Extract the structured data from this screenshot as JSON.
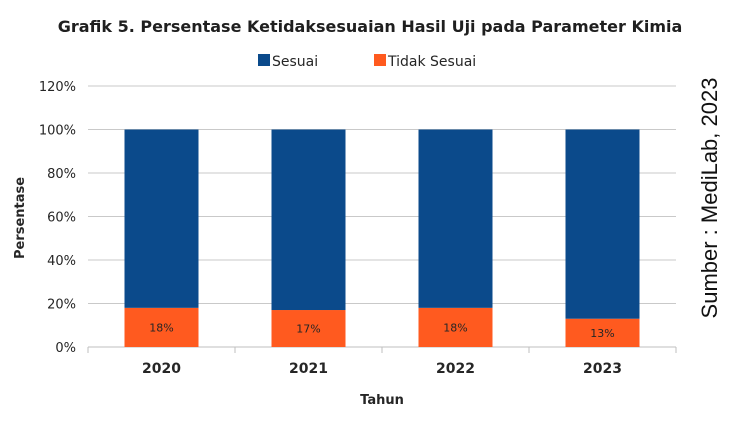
{
  "chart_data": {
    "type": "bar",
    "stacked": true,
    "title": "Grafik 5. Persentase Ketidaksesuaian Hasil Uji pada Parameter Kimia",
    "xlabel": "Tahun",
    "ylabel": "Persentase",
    "categories": [
      "2020",
      "2021",
      "2022",
      "2023"
    ],
    "series": [
      {
        "name": "Tidak Sesuai",
        "values": [
          18,
          17,
          18,
          13
        ],
        "color": "#ff5a1f",
        "labels": [
          "18%",
          "17%",
          "18%",
          "13%"
        ]
      },
      {
        "name": "Sesuai",
        "values": [
          82,
          83,
          82,
          87
        ],
        "color": "#0b4a8b"
      }
    ],
    "ylim": [
      0,
      120
    ],
    "yticks": [
      0,
      20,
      40,
      60,
      80,
      100,
      120
    ],
    "ytick_labels": [
      "0%",
      "20%",
      "40%",
      "60%",
      "80%",
      "100%",
      "120%"
    ],
    "grid": true,
    "legend": "top",
    "source": "Sumber : MediLab, 2023"
  }
}
